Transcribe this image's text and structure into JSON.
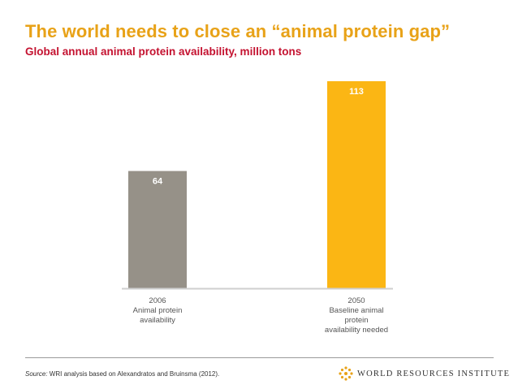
{
  "slide": {
    "title": "The world needs to close an “animal protein gap”",
    "subtitle": "Global annual animal protein availability, million tons",
    "source_label": "Source:",
    "source_text": " WRI analysis based on Alexandratos and Bruinsma (2012).",
    "logo_text": "WORLD RESOURCES INSTITUTE"
  },
  "colors": {
    "title": "#e8a218",
    "subtitle": "#c41230",
    "bar_2006": "#969188",
    "bar_2050": "#fbb614",
    "value_label": "#ffffff"
  },
  "chart_data": {
    "type": "bar",
    "title": "Global annual animal protein availability, million tons",
    "categories": [
      [
        "2006",
        "Animal protein",
        "availability"
      ],
      [
        "2050",
        "Baseline animal",
        "protein",
        "availability needed"
      ]
    ],
    "values": [
      64,
      113
    ],
    "ylim": [
      0,
      113
    ],
    "grid": false,
    "xlabel": "",
    "ylabel": ""
  }
}
